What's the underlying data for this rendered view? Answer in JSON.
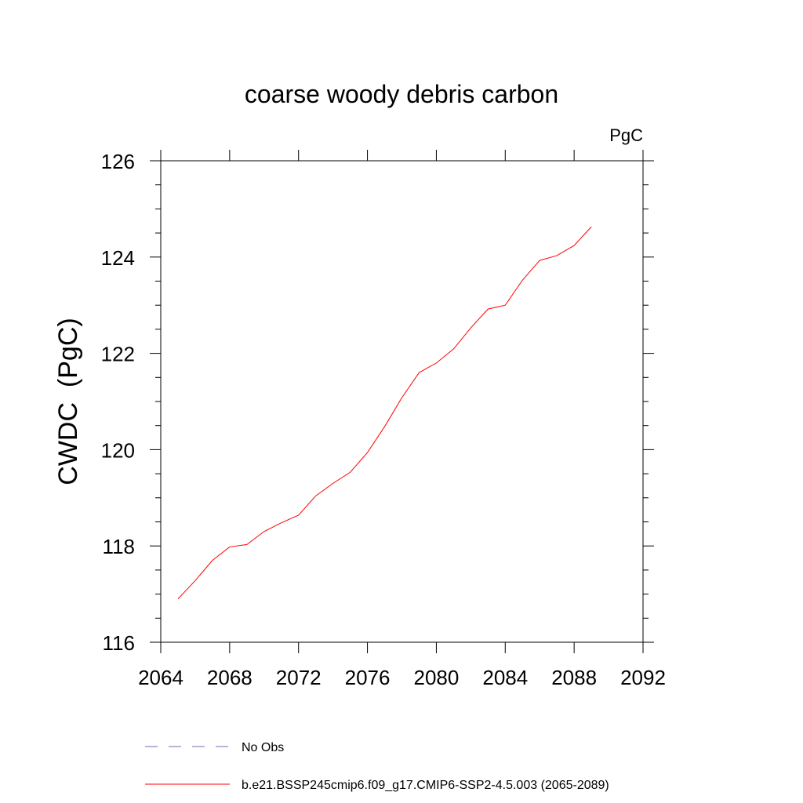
{
  "chart_data": {
    "type": "line",
    "title": "coarse woody debris carbon",
    "units": "PgC",
    "xlabel": "",
    "ylabel": "CWDC  (PgC)",
    "xlim": [
      2064,
      2092
    ],
    "ylim": [
      116,
      126
    ],
    "xticks": [
      2064,
      2068,
      2072,
      2076,
      2080,
      2084,
      2088,
      2092
    ],
    "yticks": [
      116,
      118,
      120,
      122,
      124,
      126
    ],
    "x": [
      2065,
      2066,
      2067,
      2068,
      2069,
      2070,
      2071,
      2072,
      2073,
      2074,
      2075,
      2076,
      2077,
      2078,
      2079,
      2080,
      2081,
      2082,
      2083,
      2084,
      2085,
      2086,
      2087,
      2088,
      2089
    ],
    "series": [
      {
        "name": "b.e21.BSSP245cmip6.f09_g17.CMIP6-SSP2-4.5.003 (2065-2089)",
        "color": "#ff0000",
        "values": [
          116.9,
          117.28,
          117.7,
          117.98,
          118.03,
          118.3,
          118.48,
          118.64,
          119.04,
          119.3,
          119.53,
          119.94,
          120.48,
          121.08,
          121.6,
          121.8,
          122.09,
          122.53,
          122.92,
          123.0,
          123.52,
          123.93,
          124.03,
          124.24,
          124.63
        ]
      }
    ],
    "legend": {
      "placement": "bottom",
      "entries": [
        {
          "label": "No Obs",
          "color": "#6b6bb0",
          "style": "dashed"
        },
        {
          "label": "b.e21.BSSP245cmip6.f09_g17.CMIP6-SSP2-4.5.003 (2065-2089)",
          "color": "#ff0000",
          "style": "solid"
        }
      ]
    },
    "grid": false
  }
}
